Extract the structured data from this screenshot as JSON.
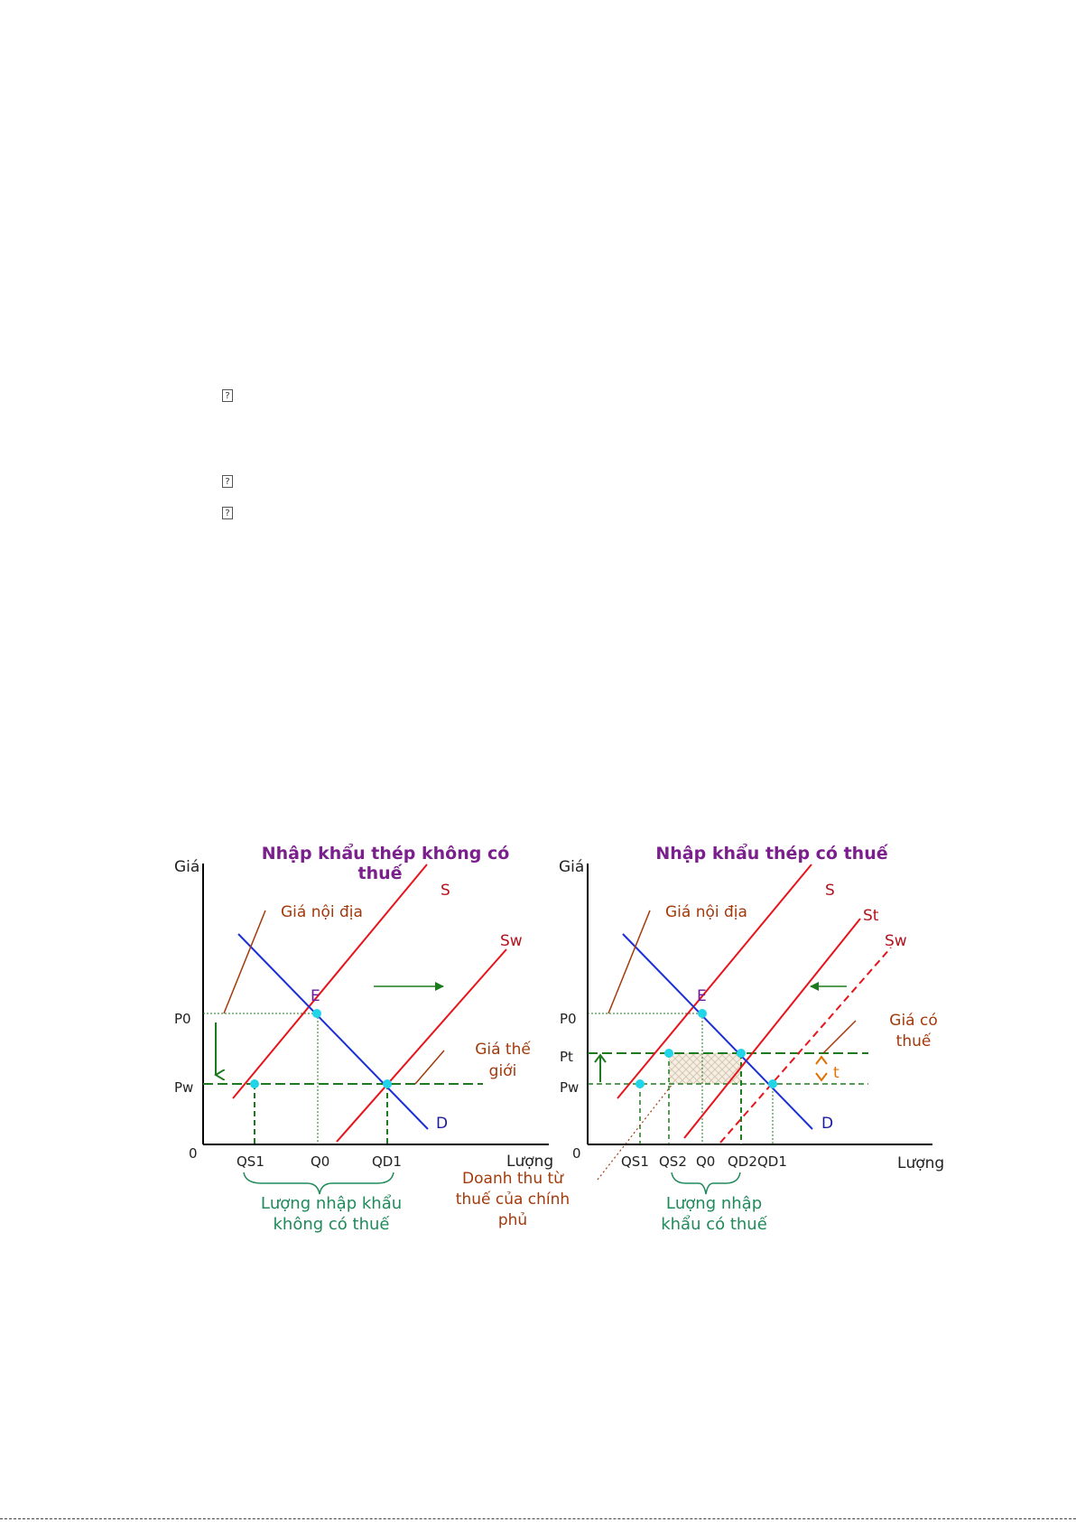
{
  "bullets": [
    "?",
    "?",
    "?"
  ],
  "left_chart": {
    "title_line1": "Nhập khẩu thép không có",
    "title_line2": "thuế",
    "y_axis": "Giá",
    "x_axis": "Lượng",
    "origin": "0",
    "p0": "P0",
    "pw": "Pw",
    "qs1": "QS1",
    "q0": "Q0",
    "qd1": "QD1",
    "s": "S",
    "sw": "Sw",
    "d": "D",
    "e": "E",
    "domestic_price": "Giá nội địa",
    "world_price_line1": "Giá thế",
    "world_price_line2": "giới",
    "import_line1": "Lượng nhập khẩu",
    "import_line2": "không có thuế"
  },
  "right_chart": {
    "title": "Nhập khẩu thép có thuế",
    "y_axis": "Giá",
    "x_axis": "Lượng",
    "origin": "0",
    "p0": "P0",
    "pt": "Pt",
    "pw": "Pw",
    "qs1": "QS1",
    "qs2": "QS2",
    "q0": "Q0",
    "qd2": "QD2",
    "qd1": "QD1",
    "s": "S",
    "st": "St",
    "sw": "Sw",
    "d": "D",
    "e": "E",
    "t": "t",
    "domestic_price": "Giá nội địa",
    "taxed_price_line1": "Giá có",
    "taxed_price_line2": "thuế",
    "import_line1": "Lượng nhập",
    "import_line2": "khẩu có thuế"
  },
  "revenue_label": [
    "Doanh thu từ",
    "thuế của chính",
    "phủ"
  ],
  "colors": {
    "supply": "#e8141c",
    "demand": "#1a2fd6",
    "guide_green": "#1e7a1e",
    "point": "#22d4e8",
    "annotation": "#a33a0b",
    "title": "#7a1f8c"
  }
}
